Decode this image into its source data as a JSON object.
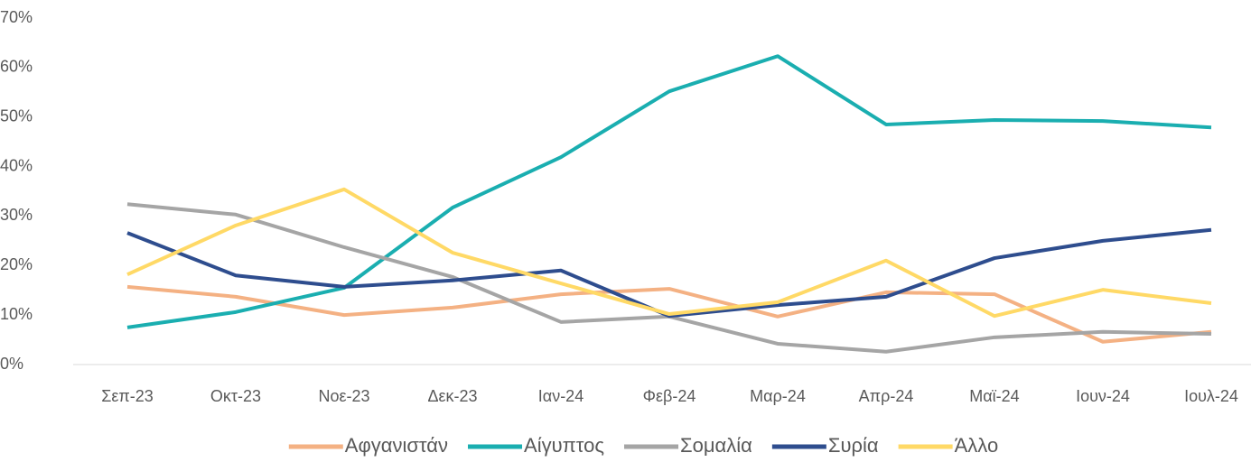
{
  "chart_data": {
    "type": "line",
    "categories": [
      "Σεπ-23",
      "Οκτ-23",
      "Νοε-23",
      "Δεκ-23",
      "Ιαν-24",
      "Φεβ-24",
      "Μαρ-24",
      "Απρ-24",
      "Μαϊ-24",
      "Ιουν-24",
      "Ιουλ-24"
    ],
    "series": [
      {
        "name": "Αφγανιστάν",
        "color": "#f4b183",
        "values": [
          15.7,
          13.7,
          10.0,
          11.5,
          14.2,
          15.3,
          9.7,
          14.6,
          14.2,
          4.6,
          6.6
        ]
      },
      {
        "name": "Αίγυπτος",
        "color": "#1aaeb0",
        "values": [
          7.5,
          10.6,
          15.5,
          31.7,
          41.9,
          55.2,
          62.3,
          48.5,
          49.4,
          49.2,
          47.9
        ]
      },
      {
        "name": "Σομαλία",
        "color": "#a5a5a5",
        "values": [
          32.4,
          30.3,
          23.7,
          17.7,
          8.6,
          9.7,
          4.2,
          2.6,
          5.5,
          6.6,
          6.2
        ]
      },
      {
        "name": "Συρία",
        "color": "#2e4d8e",
        "values": [
          26.6,
          18.0,
          15.7,
          17.0,
          19.0,
          9.8,
          12.0,
          13.7,
          21.5,
          25.0,
          27.2
        ]
      },
      {
        "name": "Άλλο",
        "color": "#ffd966",
        "values": [
          18.2,
          28.1,
          35.4,
          22.6,
          16.4,
          10.2,
          12.6,
          21.0,
          9.8,
          15.1,
          12.4
        ]
      }
    ],
    "ylim": [
      0,
      70
    ],
    "yticks": [
      {
        "value": 0,
        "label": "0%"
      },
      {
        "value": 10,
        "label": "10%"
      },
      {
        "value": 20,
        "label": "20%"
      },
      {
        "value": 30,
        "label": "30%"
      },
      {
        "value": 40,
        "label": "40%"
      },
      {
        "value": 50,
        "label": "50%"
      },
      {
        "value": 60,
        "label": "60%"
      },
      {
        "value": 70,
        "label": "70%"
      }
    ],
    "legend": "bottom"
  }
}
